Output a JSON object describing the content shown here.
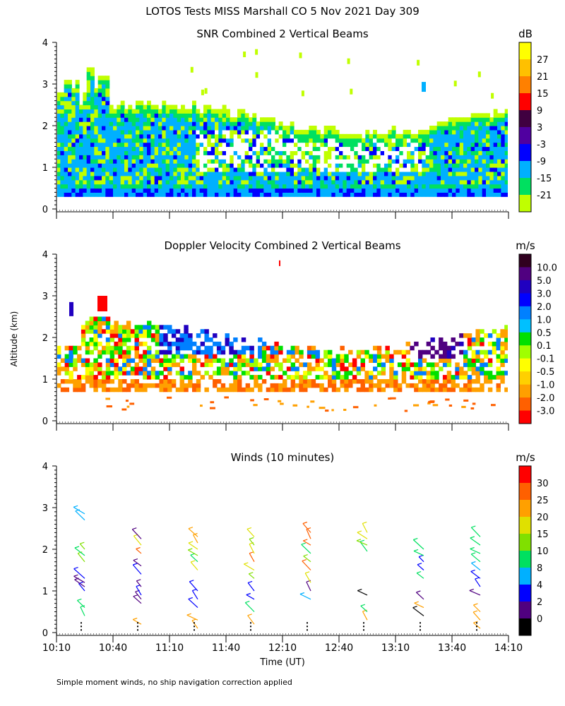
{
  "header": {
    "title": "LOTOS Tests MISS Marshall CO   5 Nov 2021 Day 309"
  },
  "footer": {
    "note": "Simple moment winds, no ship navigation correction applied"
  },
  "axes": {
    "ylabel": "Altitude (km)",
    "xlabel": "Time (UT)",
    "xticks": [
      "10:10",
      "10:40",
      "11:10",
      "11:40",
      "12:10",
      "12:40",
      "13:10",
      "13:40",
      "14:10"
    ],
    "yticks": [
      "0",
      "1",
      "2",
      "3",
      "4"
    ]
  },
  "chart_data": [
    {
      "type": "heatmap",
      "title": "SNR Combined 2 Vertical Beams",
      "units": "dB",
      "ylim": [
        0,
        4
      ],
      "xlim": [
        "10:10",
        "14:10"
      ],
      "colorbar": {
        "labels": [
          "27",
          "21",
          "15",
          "9",
          "3",
          "-3",
          "-9",
          "-15",
          "-21"
        ],
        "colors": [
          "#ffff00",
          "#ffc000",
          "#ff8000",
          "#ff0000",
          "#400040",
          "#5000a0",
          "#0000ff",
          "#00b0ff",
          "#00e060",
          "#c0ff00"
        ]
      },
      "cloud_layer": {
        "base_km": 0.3,
        "top_km_range": [
          2.0,
          2.4
        ]
      }
    },
    {
      "type": "heatmap",
      "title": "Doppler Velocity Combined 2 Vertical Beams",
      "units": "m/s",
      "ylim": [
        0,
        4
      ],
      "xlim": [
        "10:10",
        "14:10"
      ],
      "colorbar": {
        "labels": [
          "10.0",
          "5.0",
          "3.0",
          "2.0",
          "1.0",
          "0.5",
          "0.1",
          "-0.1",
          "-0.5",
          "-1.0",
          "-2.0",
          "-3.0"
        ],
        "colors": [
          "#300020",
          "#500080",
          "#2000c0",
          "#0000ff",
          "#0080ff",
          "#00c0ff",
          "#00e000",
          "#a0ff00",
          "#ffff00",
          "#ffd000",
          "#ffa000",
          "#ff6000",
          "#ff0000"
        ]
      }
    },
    {
      "type": "scatter",
      "title": "Winds (10 minutes)",
      "units": "m/s",
      "ylim": [
        0,
        4
      ],
      "xlim": [
        "10:10",
        "14:10"
      ],
      "colorbar": {
        "labels": [
          "30",
          "25",
          "20",
          "15",
          "10",
          "8",
          "4",
          "2",
          "0"
        ],
        "colors": [
          "#ff0000",
          "#ff6000",
          "#ffa000",
          "#e0e000",
          "#80e000",
          "#00e060",
          "#00b0ff",
          "#0000ff",
          "#500080",
          "#000000"
        ]
      },
      "profiles": [
        {
          "time": "10:25",
          "barbs": [
            [
              0.4,
              "#00e060"
            ],
            [
              0.6,
              "#00e060"
            ],
            [
              1.0,
              "#0000ff"
            ],
            [
              1.1,
              "#500080"
            ],
            [
              1.2,
              "#500080"
            ],
            [
              1.3,
              "#0000ff"
            ],
            [
              1.7,
              "#80e000"
            ],
            [
              1.85,
              "#00e060"
            ],
            [
              2.0,
              "#80e000"
            ],
            [
              2.7,
              "#00b0ff"
            ],
            [
              2.85,
              "#00b0ff"
            ]
          ]
        },
        {
          "time": "10:55",
          "barbs": [
            [
              0.2,
              "#ffa000"
            ],
            [
              0.7,
              "#500080"
            ],
            [
              0.8,
              "#500080"
            ],
            [
              0.9,
              "#0000ff"
            ],
            [
              1.1,
              "#500080"
            ],
            [
              1.4,
              "#0000ff"
            ],
            [
              1.6,
              "#500080"
            ],
            [
              1.9,
              "#ff6000"
            ],
            [
              2.1,
              "#e0e000"
            ],
            [
              2.25,
              "#500080"
            ]
          ]
        },
        {
          "time": "11:25",
          "barbs": [
            [
              0.1,
              "#ffa000"
            ],
            [
              0.3,
              "#ffa000"
            ],
            [
              0.6,
              "#0000ff"
            ],
            [
              0.8,
              "#0000ff"
            ],
            [
              1.0,
              "#0000ff"
            ],
            [
              1.5,
              "#e0e000"
            ],
            [
              1.7,
              "#00e060"
            ],
            [
              1.85,
              "#80e000"
            ],
            [
              2.0,
              "#e0e000"
            ],
            [
              2.15,
              "#ffa000"
            ],
            [
              2.3,
              "#ffa000"
            ]
          ]
        },
        {
          "time": "11:55",
          "barbs": [
            [
              0.2,
              "#ffa000"
            ],
            [
              0.5,
              "#00e060"
            ],
            [
              0.8,
              "#0000ff"
            ],
            [
              1.0,
              "#0000ff"
            ],
            [
              1.3,
              "#80e000"
            ],
            [
              1.5,
              "#e0e000"
            ],
            [
              1.7,
              "#ff6000"
            ],
            [
              1.9,
              "#e0e000"
            ],
            [
              2.1,
              "#80e000"
            ],
            [
              2.3,
              "#e0e000"
            ]
          ]
        },
        {
          "time": "12:25",
          "barbs": [
            [
              0.8,
              "#00b0ff"
            ],
            [
              1.0,
              "#500080"
            ],
            [
              1.2,
              "#e0e000"
            ],
            [
              1.5,
              "#ff6000"
            ],
            [
              1.7,
              "#80e000"
            ],
            [
              1.9,
              "#00e060"
            ],
            [
              2.1,
              "#ff6000"
            ],
            [
              2.25,
              "#ff6000"
            ],
            [
              2.4,
              "#ff6000"
            ]
          ]
        },
        {
          "time": "12:55",
          "barbs": [
            [
              0.3,
              "#ffa000"
            ],
            [
              0.5,
              "#00e060"
            ],
            [
              0.9,
              "#000000"
            ],
            [
              1.95,
              "#00e060"
            ],
            [
              2.1,
              "#80e000"
            ],
            [
              2.25,
              "#e0e000"
            ],
            [
              2.4,
              "#e0e000"
            ]
          ]
        },
        {
          "time": "13:25",
          "barbs": [
            [
              0.4,
              "#000000"
            ],
            [
              0.6,
              "#ffa000"
            ],
            [
              0.8,
              "#500080"
            ],
            [
              1.3,
              "#00e060"
            ],
            [
              1.5,
              "#0000ff"
            ],
            [
              1.7,
              "#0000ff"
            ],
            [
              1.85,
              "#00e060"
            ],
            [
              2.0,
              "#00e060"
            ]
          ]
        },
        {
          "time": "13:55",
          "barbs": [
            [
              0.1,
              "#ffa000"
            ],
            [
              0.3,
              "#ffa000"
            ],
            [
              0.5,
              "#ffa000"
            ],
            [
              0.9,
              "#500080"
            ],
            [
              1.1,
              "#0000ff"
            ],
            [
              1.3,
              "#0000ff"
            ],
            [
              1.5,
              "#00b0ff"
            ],
            [
              1.7,
              "#00e060"
            ],
            [
              1.9,
              "#00e060"
            ],
            [
              2.1,
              "#00e060"
            ],
            [
              2.3,
              "#00e060"
            ]
          ]
        }
      ]
    }
  ]
}
